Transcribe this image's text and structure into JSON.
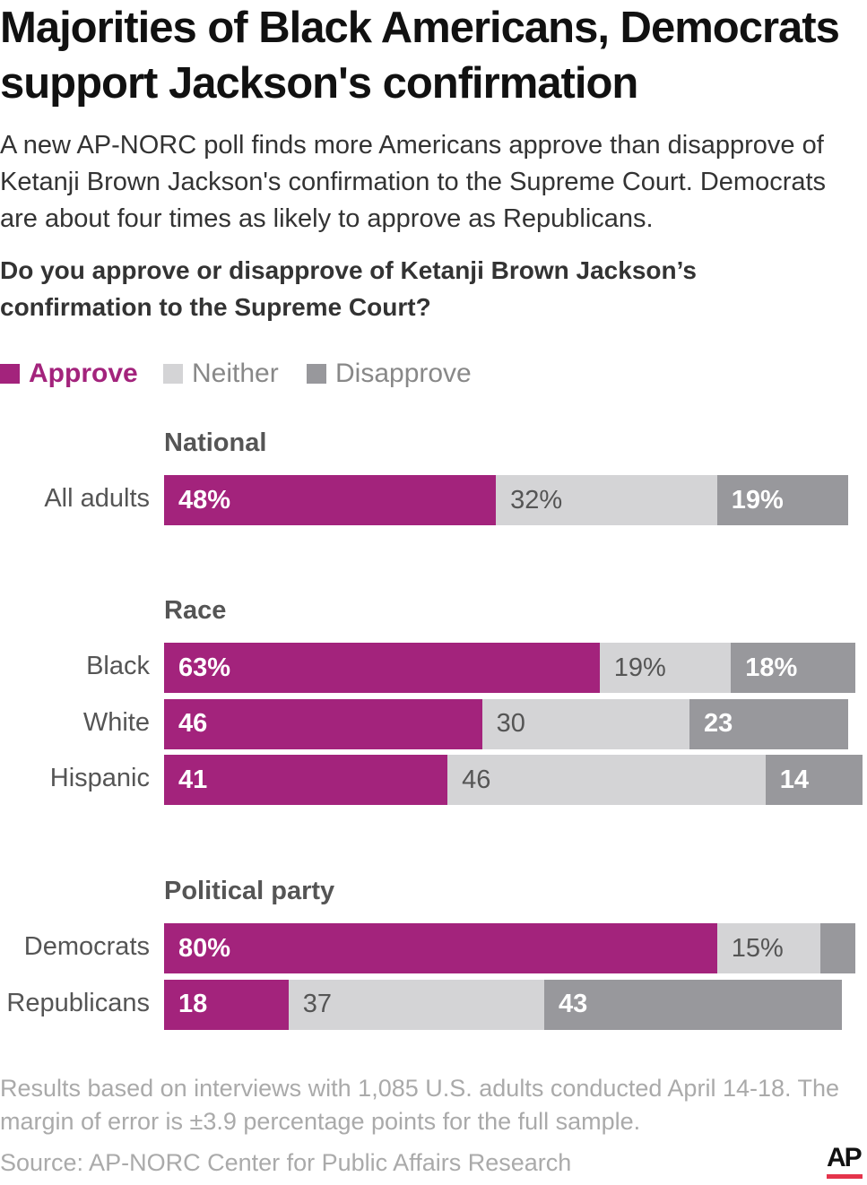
{
  "title": "Majorities of Black Americans, Democrats support Jackson's confirmation",
  "subtitle": "A new AP-NORC poll finds more Americans approve than disapprove of Ketanji Brown Jackson's confirmation to the Supreme Court. Democrats are about four times as likely to approve as Republicans.",
  "question": "Do you approve or disapprove of Ketanji Brown Jackson’s confirmation to the Supreme Court?",
  "colors": {
    "approve": "#a3237c",
    "neither": "#d4d4d6",
    "disapprove": "#98989c"
  },
  "chart_data": {
    "type": "bar",
    "stacked": true,
    "orientation": "horizontal",
    "legend": [
      "Approve",
      "Neither",
      "Disapprove"
    ],
    "legend_position": "top-left",
    "groups": [
      {
        "name": "National",
        "rows": [
          {
            "label": "All adults",
            "values": [
              48,
              32,
              19
            ],
            "labels": [
              "48%",
              "32%",
              "19%"
            ]
          }
        ]
      },
      {
        "name": "Race",
        "rows": [
          {
            "label": "Black",
            "values": [
              63,
              19,
              18
            ],
            "labels": [
              "63%",
              "19%",
              "18%"
            ]
          },
          {
            "label": "White",
            "values": [
              46,
              30,
              23
            ],
            "labels": [
              "46",
              "30",
              "23"
            ]
          },
          {
            "label": "Hispanic",
            "values": [
              41,
              46,
              14
            ],
            "labels": [
              "41",
              "46",
              "14"
            ]
          }
        ]
      },
      {
        "name": "Political party",
        "rows": [
          {
            "label": "Democrats",
            "values": [
              80,
              15,
              5
            ],
            "labels": [
              "80%",
              "15%",
              ""
            ]
          },
          {
            "label": "Republicans",
            "values": [
              18,
              37,
              43
            ],
            "labels": [
              "18",
              "37",
              "43"
            ]
          }
        ]
      }
    ]
  },
  "note": "Results based on interviews with 1,085 U.S. adults conducted April 14-18. The margin of error is ±3.9 percentage points for the full sample.",
  "source": "Source: AP-NORC Center for Public Affairs Research",
  "logo": "AP"
}
